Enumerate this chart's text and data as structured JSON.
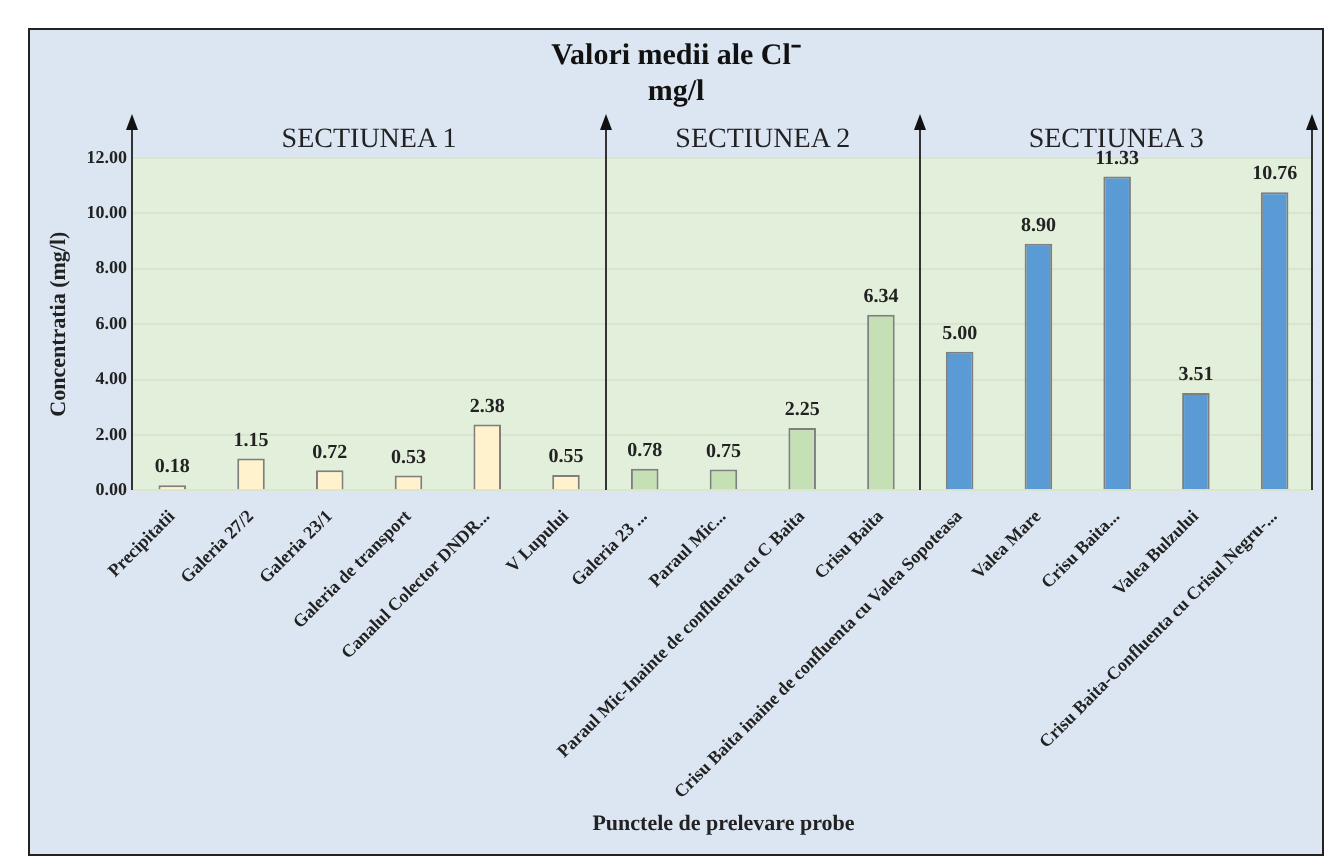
{
  "chart_data": {
    "type": "bar",
    "title": "Valori medii ale Cl⁻\nmg/l",
    "xlabel": "Punctele de prelevare probe",
    "ylabel": "Concentratia (mg/l)",
    "categories": [
      "Precipitatii",
      "Galeria 27/2",
      "Galeria 23/1",
      "Galeria de transport",
      "Canalul Colector DNDR...",
      "V Lupului",
      "Galeria 23 ...",
      "Paraul Mic...",
      "Paraul Mic-Inainte de confluenta cu C Baita",
      "Crisu Baita",
      "Crisu Baita inaine de confluenta cu Valea Sopoteasa",
      "Valea Mare",
      "Crisu Baita...",
      "Valea Bulzului",
      "Crisu Baita-Confluenta cu Crisul Negru-..."
    ],
    "values": [
      0.18,
      1.15,
      0.72,
      0.53,
      2.38,
      0.55,
      0.78,
      0.75,
      2.25,
      6.34,
      5.0,
      8.9,
      11.33,
      3.51,
      10.76
    ],
    "value_labels": [
      "0.18",
      "1.15",
      "0.72",
      "0.53",
      "2.38",
      "0.55",
      "0.78",
      "0.75",
      "2.25",
      "6.34",
      "5.00",
      "8.90",
      "11.33",
      "3.51",
      "10.76"
    ],
    "colors": [
      "#fff2cc",
      "#fff2cc",
      "#fff2cc",
      "#fff2cc",
      "#fff2cc",
      "#fff2cc",
      "#c5e0b4",
      "#c5e0b4",
      "#c5e0b4",
      "#c5e0b4",
      "#5b9bd5",
      "#5b9bd5",
      "#5b9bd5",
      "#5b9bd5",
      "#5b9bd5"
    ],
    "ylim": [
      0,
      12
    ],
    "yticks": [
      {
        "value": 0,
        "label": "0.00"
      },
      {
        "value": 2,
        "label": "2.00"
      },
      {
        "value": 4,
        "label": "4.00"
      },
      {
        "value": 6,
        "label": "6.00"
      },
      {
        "value": 8,
        "label": "8.00"
      },
      {
        "value": 10,
        "label": "10.00"
      },
      {
        "value": 12,
        "label": "12.00"
      }
    ],
    "annotations": [
      "SECTIUNEA 1",
      "SECTIUNEA 2",
      "SECTIUNEA 3"
    ],
    "grid": "y",
    "legend": false
  }
}
